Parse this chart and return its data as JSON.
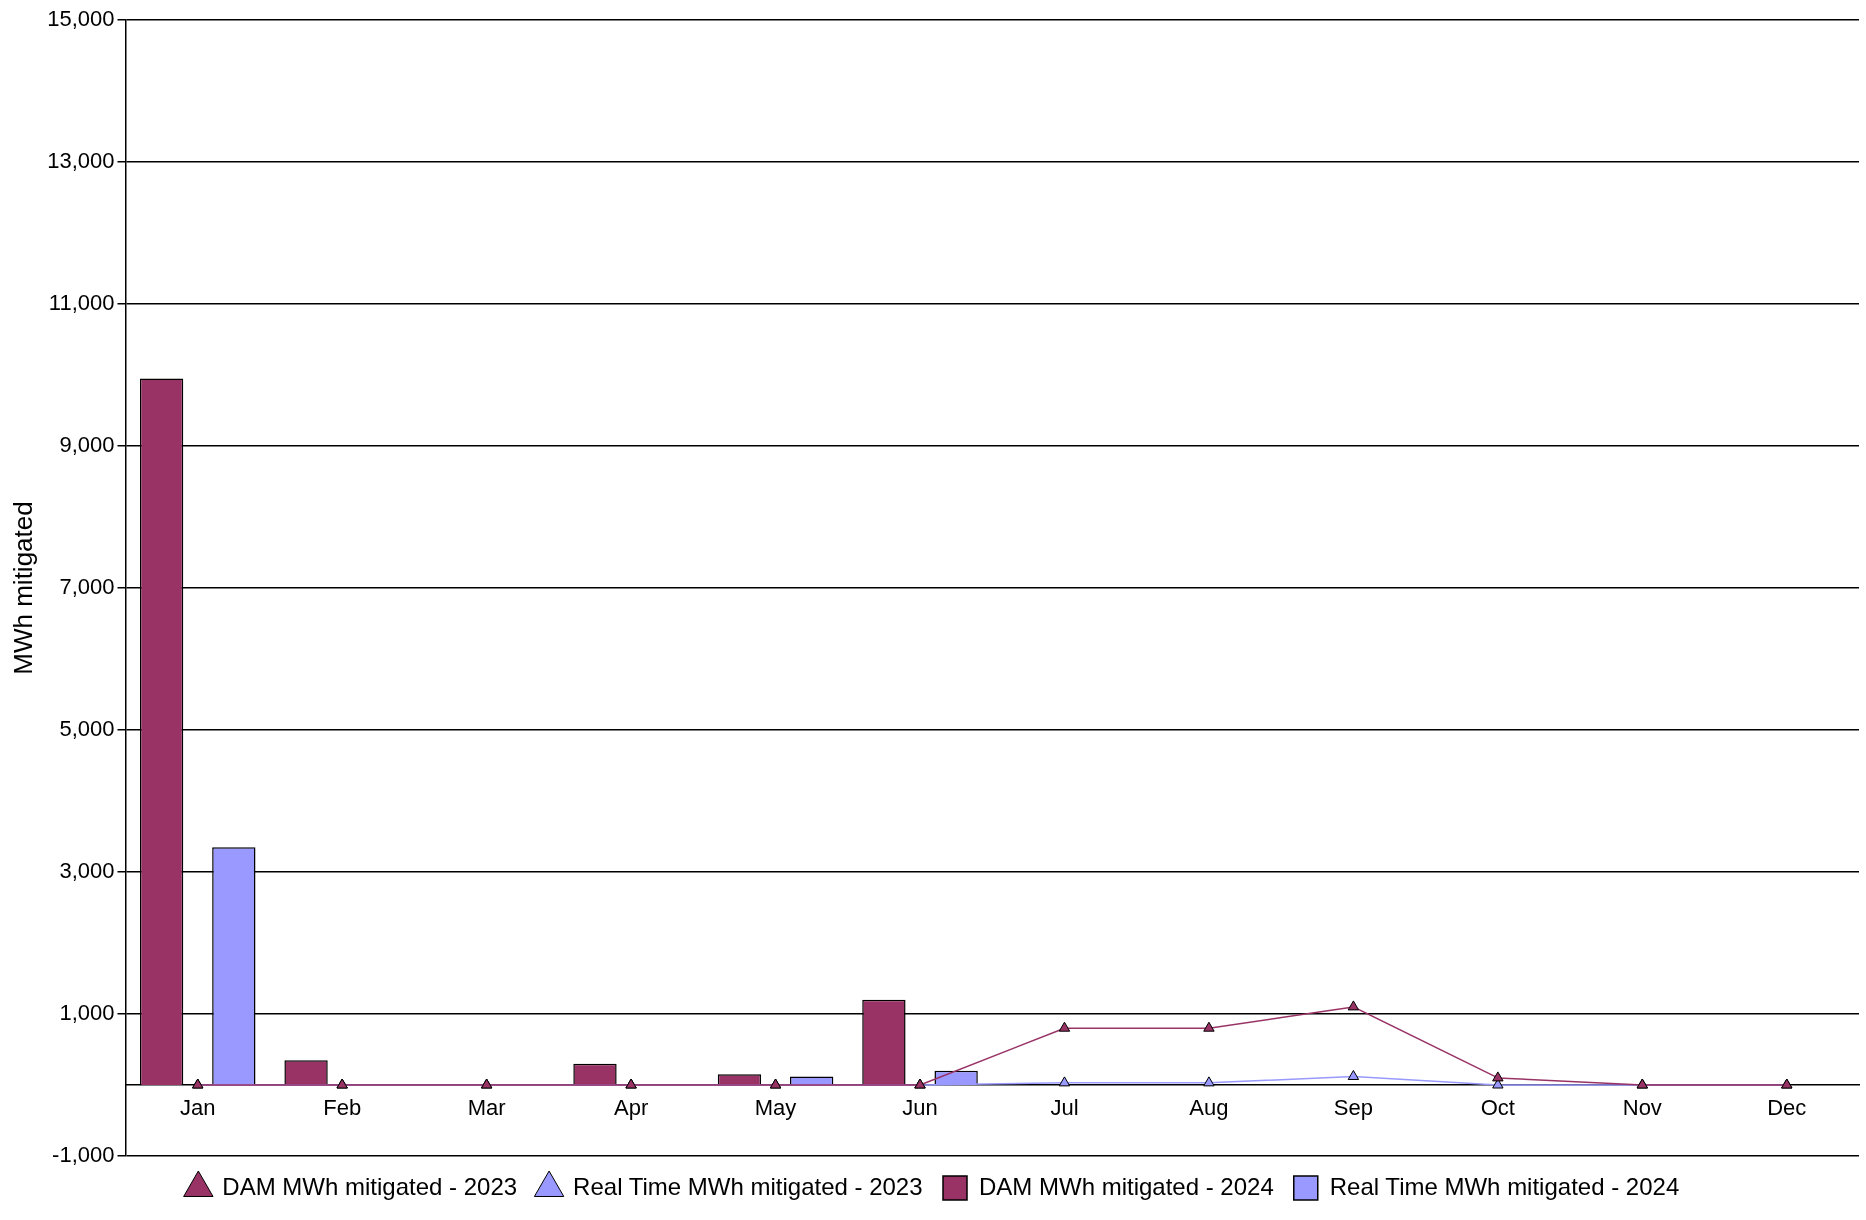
{
  "chart_data": {
    "type": "bar",
    "ylabel": "MWh mitigated",
    "categories": [
      "Jan",
      "Feb",
      "Mar",
      "Apr",
      "May",
      "Jun",
      "Jul",
      "Aug",
      "Sep",
      "Oct",
      "Nov",
      "Dec"
    ],
    "series": [
      {
        "name": "DAM MWh mitigated - 2024",
        "color": "#993366",
        "values": [
          9950,
          350,
          0,
          300,
          150,
          1200,
          null,
          null,
          null,
          null,
          null,
          null
        ]
      },
      {
        "name": "Real Time MWh mitigated - 2024",
        "color": "#9999ff",
        "values": [
          3350,
          0,
          0,
          0,
          120,
          200,
          null,
          null,
          null,
          null,
          null,
          null
        ]
      },
      {
        "name": "DAM MWh mitigated - 2023",
        "type": "line",
        "color": "#993366",
        "marker": "triangle",
        "values": [
          0,
          0,
          0,
          0,
          0,
          0,
          800,
          800,
          1100,
          100,
          0,
          0
        ]
      },
      {
        "name": "Real Time MWh mitigated - 2023",
        "type": "line",
        "color": "#9999ff",
        "marker": "triangle",
        "values": [
          0,
          0,
          0,
          0,
          0,
          0,
          30,
          30,
          120,
          0,
          0,
          0
        ]
      }
    ],
    "ylim": [
      -1000,
      15000
    ],
    "yticks": [
      {
        "value": -1000,
        "label": "-1,000"
      },
      {
        "value": 1000,
        "label": "1,000"
      },
      {
        "value": 3000,
        "label": "3,000"
      },
      {
        "value": 5000,
        "label": "5,000"
      },
      {
        "value": 7000,
        "label": "7,000"
      },
      {
        "value": 9000,
        "label": "9,000"
      },
      {
        "value": 11000,
        "label": "11,000"
      },
      {
        "value": 13000,
        "label": "13,000"
      },
      {
        "value": 15000,
        "label": "15,000"
      }
    ],
    "grid": "y",
    "legend": "bottom"
  }
}
